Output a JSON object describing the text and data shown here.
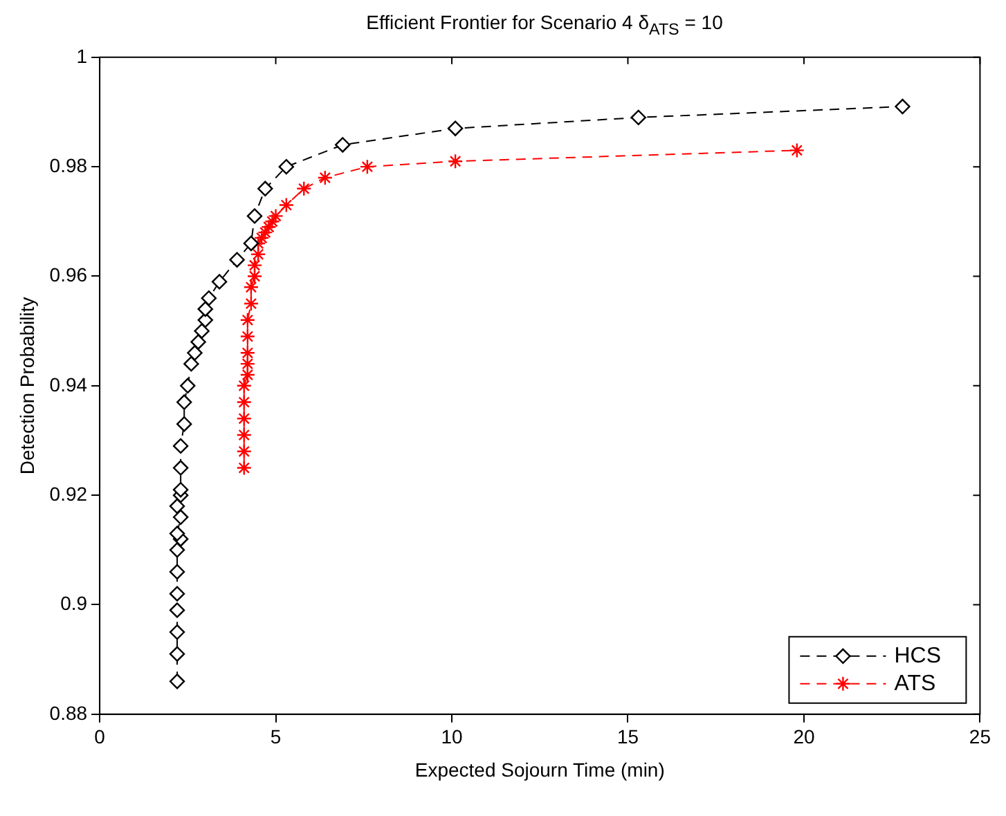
{
  "chart_data": {
    "type": "line",
    "title": "Efficient Frontier for Scenario 4 δ$_{ATS}$ = 10",
    "xlabel": "Expected Sojourn Time (min)",
    "ylabel": "Detection Probability",
    "xlim": [
      0,
      25
    ],
    "xticks": [
      0,
      5,
      10,
      15,
      20,
      25
    ],
    "ylim": [
      0.88,
      1
    ],
    "yticks": [
      0.88,
      0.9,
      0.92,
      0.94,
      0.96,
      0.98,
      1
    ],
    "grid": false,
    "legend": "bottom right",
    "series": [
      {
        "name": "HCS",
        "color": "#000000",
        "marker": "diamond",
        "line_style": "dashed",
        "x": [
          2.2,
          2.2,
          2.2,
          2.2,
          2.2,
          2.2,
          2.2,
          2.3,
          2.2,
          2.3,
          2.2,
          2.3,
          2.3,
          2.3,
          2.3,
          2.4,
          2.4,
          2.5,
          2.6,
          2.7,
          2.8,
          2.9,
          3.0,
          3.0,
          3.1,
          3.4,
          3.9,
          4.3,
          4.4,
          4.7,
          5.3,
          6.9,
          10.1,
          15.3,
          22.8
        ],
        "values": [
          0.886,
          0.891,
          0.895,
          0.899,
          0.902,
          0.906,
          0.91,
          0.912,
          0.913,
          0.916,
          0.918,
          0.92,
          0.921,
          0.925,
          0.929,
          0.933,
          0.937,
          0.94,
          0.944,
          0.946,
          0.948,
          0.95,
          0.952,
          0.954,
          0.956,
          0.959,
          0.963,
          0.966,
          0.971,
          0.976,
          0.98,
          0.984,
          0.987,
          0.989,
          0.991
        ]
      },
      {
        "name": "ATS",
        "color": "#ff0000",
        "marker": "cross",
        "line_style": "dashed",
        "x": [
          4.1,
          4.1,
          4.1,
          4.1,
          4.1,
          4.1,
          4.2,
          4.2,
          4.2,
          4.2,
          4.2,
          4.3,
          4.3,
          4.4,
          4.4,
          4.5,
          4.5,
          4.6,
          4.7,
          4.8,
          4.9,
          5.0,
          5.3,
          5.8,
          6.4,
          7.6,
          10.1,
          19.8
        ],
        "values": [
          0.925,
          0.928,
          0.931,
          0.934,
          0.937,
          0.94,
          0.942,
          0.944,
          0.946,
          0.949,
          0.952,
          0.955,
          0.958,
          0.96,
          0.962,
          0.964,
          0.966,
          0.967,
          0.968,
          0.969,
          0.97,
          0.971,
          0.973,
          0.976,
          0.978,
          0.98,
          0.981,
          0.983
        ]
      }
    ]
  }
}
